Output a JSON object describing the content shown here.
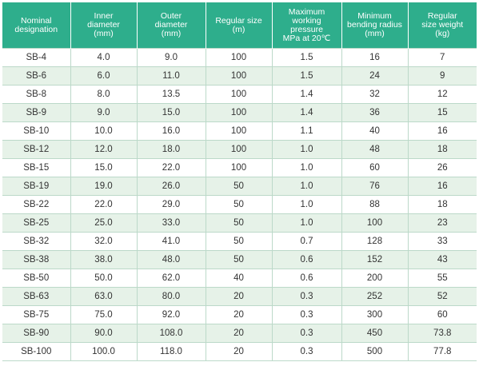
{
  "table": {
    "headers": [
      "Nominal\ndesignation",
      "Inner\ndiameter\n(mm)",
      "Outer\ndiameter\n(mm)",
      "Regular size\n(m)",
      "Maximum working\npressure\nMPa at 20℃",
      "Minimum\nbending radius\n(mm)",
      "Regular\nsize weight\n(kg)"
    ],
    "rows": [
      [
        "SB-4",
        "4.0",
        "9.0",
        "100",
        "1.5",
        "16",
        "7"
      ],
      [
        "SB-6",
        "6.0",
        "11.0",
        "100",
        "1.5",
        "24",
        "9"
      ],
      [
        "SB-8",
        "8.0",
        "13.5",
        "100",
        "1.4",
        "32",
        "12"
      ],
      [
        "SB-9",
        "9.0",
        "15.0",
        "100",
        "1.4",
        "36",
        "15"
      ],
      [
        "SB-10",
        "10.0",
        "16.0",
        "100",
        "1.1",
        "40",
        "16"
      ],
      [
        "SB-12",
        "12.0",
        "18.0",
        "100",
        "1.0",
        "48",
        "18"
      ],
      [
        "SB-15",
        "15.0",
        "22.0",
        "100",
        "1.0",
        "60",
        "26"
      ],
      [
        "SB-19",
        "19.0",
        "26.0",
        "50",
        "1.0",
        "76",
        "16"
      ],
      [
        "SB-22",
        "22.0",
        "29.0",
        "50",
        "1.0",
        "88",
        "18"
      ],
      [
        "SB-25",
        "25.0",
        "33.0",
        "50",
        "1.0",
        "100",
        "23"
      ],
      [
        "SB-32",
        "32.0",
        "41.0",
        "50",
        "0.7",
        "128",
        "33"
      ],
      [
        "SB-38",
        "38.0",
        "48.0",
        "50",
        "0.6",
        "152",
        "43"
      ],
      [
        "SB-50",
        "50.0",
        "62.0",
        "40",
        "0.6",
        "200",
        "55"
      ],
      [
        "SB-63",
        "63.0",
        "80.0",
        "20",
        "0.3",
        "252",
        "52"
      ],
      [
        "SB-75",
        "75.0",
        "92.0",
        "20",
        "0.3",
        "300",
        "60"
      ],
      [
        "SB-90",
        "90.0",
        "108.0",
        "20",
        "0.3",
        "450",
        "73.8"
      ],
      [
        "SB-100",
        "100.0",
        "118.0",
        "20",
        "0.3",
        "500",
        "77.8"
      ]
    ]
  },
  "colors": {
    "header_bg": "#2eae8c",
    "header_text": "#ffffff",
    "stripe_bg": "#e6f2e8",
    "grid_line": "#bcd9c9"
  }
}
